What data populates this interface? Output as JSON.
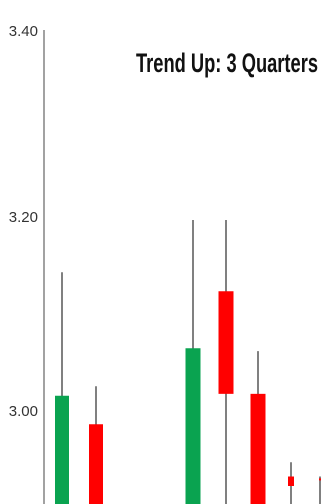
{
  "chart_data": {
    "type": "candlestick",
    "title": "Trend Up: 3 Quarters",
    "xlabel": "",
    "ylabel": "",
    "ylim": [
      2.9,
      3.4
    ],
    "yticks": [
      "3.40",
      "3.20",
      "3.00"
    ],
    "grid": false,
    "legend": "none",
    "colors": {
      "up": "#0aa350",
      "down": "#ff0000",
      "wick": "#000000"
    },
    "candles": [
      {
        "open": 2.88,
        "close": 3.015,
        "high": 3.145,
        "low": 2.88
      },
      {
        "open": 2.985,
        "close": 2.88,
        "high": 3.025,
        "low": 2.88
      },
      {
        "open": 2.88,
        "close": 3.065,
        "high": 3.2,
        "low": 2.88
      },
      {
        "open": 3.125,
        "close": 3.017,
        "high": 3.2,
        "low": 2.88
      },
      {
        "open": 3.017,
        "close": 2.88,
        "high": 3.062,
        "low": 2.88
      },
      {
        "open": 2.93,
        "close": 2.92,
        "high": 2.945,
        "low": 2.89
      },
      {
        "open": 2.928,
        "close": 2.926,
        "high": 2.93,
        "low": 2.89
      }
    ]
  }
}
